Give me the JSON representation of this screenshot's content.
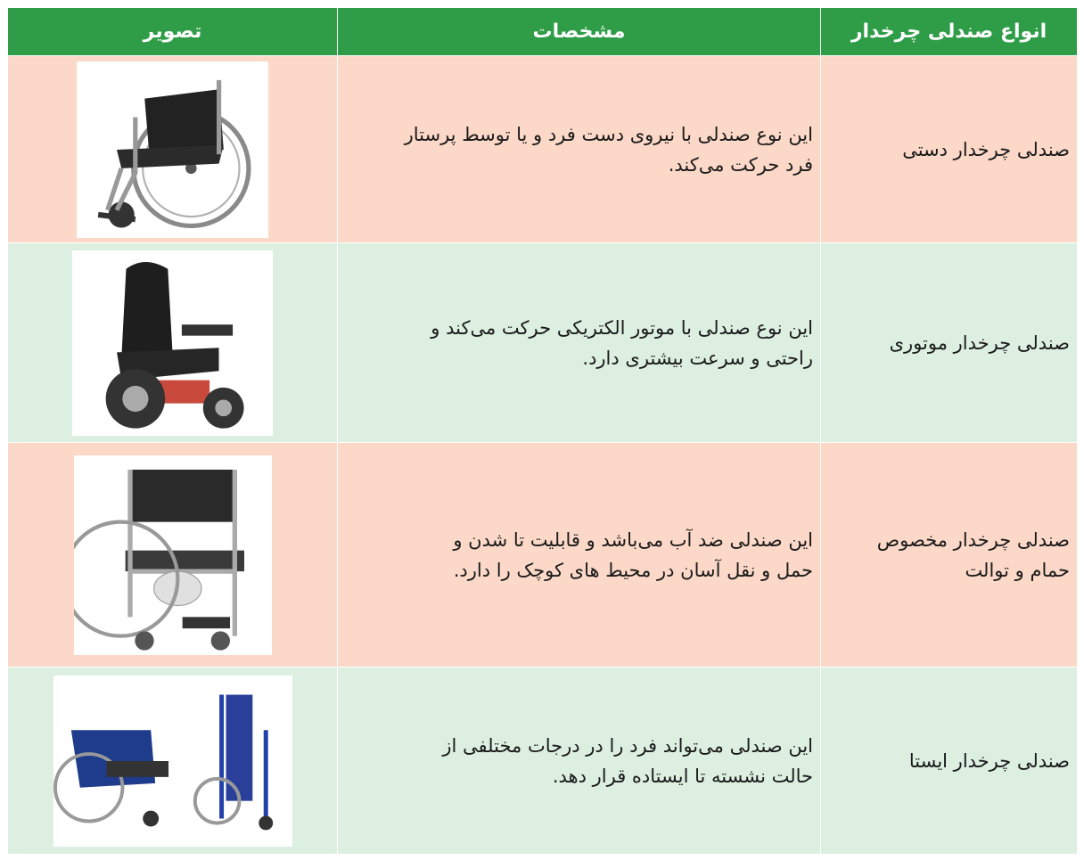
{
  "table": {
    "header": [
      "انواع صندلی چرخدار",
      "مشخصات",
      "تصویر"
    ],
    "rows": [
      {
        "type": [
          "صندلی چرخدار دستی"
        ],
        "description": [
          "این نوع صندلی با نیروی دست فرد و یا توسط پرستار",
          "فرد حرکت می‌کند."
        ]
      },
      {
        "type": [
          "صندلی چرخدار موتوری"
        ],
        "description": [
          "این نوع صندلی با موتور الکتریکی حرکت می‌کند و",
          "راحتی و سرعت بیشتری دارد."
        ]
      },
      {
        "type": [
          "صندلی چرخدار مخصوص",
          "حمام و توالت"
        ],
        "description": [
          "این صندلی ضد آب می‌باشد و قابلیت تا شدن و",
          "حمل و نقل آسان در محیط های کوچک را دارد."
        ]
      },
      {
        "type": [
          "صندلی چرخدار ایستا"
        ],
        "description": [
          "این صندلی می‌تواند فرد را در درجات مختلفی از",
          "حالت نشسته تا ایستاده قرار دهد."
        ]
      }
    ]
  }
}
